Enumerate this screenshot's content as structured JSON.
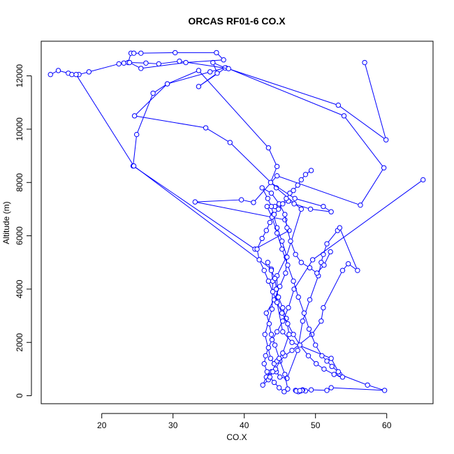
{
  "chart_data": {
    "type": "line",
    "title": "ORCAS RF01-6 CO.X",
    "xlabel": "CO.X",
    "ylabel": "Altitude (m)",
    "xlim": [
      11.5,
      66.5
    ],
    "ylim": [
      -300,
      13300
    ],
    "x_ticks": [
      20,
      30,
      40,
      50,
      60
    ],
    "y_ticks": [
      0,
      2000,
      4000,
      6000,
      8000,
      10000,
      12000
    ],
    "grid": false,
    "legend": "none",
    "line_color": "#0000ff",
    "marker": "open-circle",
    "series": [
      {
        "x": [
          56.9,
          59.9,
          53.2,
          37.4,
          33.6,
          36.2,
          35.6,
          37.3,
          35.2,
          29.2,
          24.6,
          34.6,
          38.0,
          44.5,
          48.0,
          45.9,
          44.6,
          44.6,
          45.4,
          46.7,
          52.2,
          53.4,
          57.3,
          59.7,
          52.2,
          51.6,
          49.4,
          48.6,
          47.2,
          47.6,
          48.2,
          47.9,
          48.1,
          47.3,
          47.8
        ],
        "y": [
          12500,
          9600,
          10900,
          12300,
          11600,
          12100,
          12500,
          12300,
          12150,
          11700,
          10500,
          10050,
          9500,
          7800,
          7000,
          5200,
          4500,
          3500,
          2400,
          2000,
          1400,
          800,
          400,
          200,
          300,
          200,
          220,
          180,
          200,
          150,
          220,
          180,
          200,
          180,
          190
        ],
        "name": ""
      },
      {
        "x": [
          12.8,
          13.9,
          15.3,
          16.8,
          18.2,
          22.4,
          23.1,
          23.7,
          24.1,
          24.5,
          25.5,
          30.3,
          36.1,
          37.1,
          31.8,
          25.5,
          23.9,
          26.2,
          28.0,
          30.9,
          37.8,
          54.0,
          59.6,
          56.3,
          44.6,
          41.3,
          39.6,
          33.1,
          45.7,
          46.3,
          41.5,
          24.4,
          24.9,
          27.2,
          29.2,
          33.6,
          43.4,
          44.6,
          43.7,
          47.1,
          51.1,
          52.2,
          49.3,
          47.0,
          46.2,
          44.3
        ],
        "y": [
          12050,
          12200,
          12100,
          12050,
          12150,
          12450,
          12480,
          12500,
          12850,
          12850,
          12850,
          12870,
          12870,
          12600,
          12500,
          12280,
          12500,
          12480,
          12450,
          12550,
          12270,
          10500,
          8550,
          7150,
          8250,
          7250,
          7350,
          7270,
          6600,
          6200,
          5500,
          8620,
          9800,
          11350,
          11700,
          12200,
          9300,
          8600,
          8000,
          7400,
          7100,
          6900,
          7000,
          7200,
          7300,
          7100
        ],
        "name": ""
      },
      {
        "x": [
          15.8,
          16.4,
          24.5,
          43.8,
          44.0,
          43.9,
          42.9,
          43.7,
          44.2,
          44.5,
          45.0,
          46.0,
          47.5,
          48.2,
          49.2,
          50.4,
          50.8,
          51.1,
          51.6,
          53.1,
          53.4,
          55.9,
          54.6,
          53.8,
          51.1,
          50.8,
          49.5,
          46.7,
          45.7,
          45.0,
          44.4,
          43.8,
          43.1,
          42.6,
          43.4,
          44.0,
          44.6,
          45.4,
          46.3,
          45.9,
          45.4,
          44.8,
          44.5,
          44.3,
          43.8,
          43.3
        ],
        "y": [
          12050,
          12050,
          8620,
          4750,
          4300,
          3250,
          2300,
          1400,
          1200,
          900,
          700,
          650,
          1700,
          2800,
          3600,
          4500,
          5000,
          5300,
          5700,
          6200,
          6300,
          4700,
          4950,
          4700,
          3300,
          2800,
          2300,
          1700,
          1500,
          1300,
          1000,
          900,
          700,
          400,
          600,
          900,
          1300,
          1600,
          2300,
          2900,
          3300,
          3700,
          4000,
          4400,
          4700,
          5000
        ],
        "name": ""
      },
      {
        "x": [
          65.1,
          49.6,
          47.0,
          46.2,
          45.4,
          44.6,
          43.9,
          43.4,
          43.0,
          42.8,
          43.2,
          43.6,
          44.2,
          44.9,
          45.6,
          46.1,
          45.7,
          44.9,
          44.3,
          43.8,
          43.5,
          43.1,
          44.2,
          45.0,
          45.8,
          46.0,
          45.3,
          44.6,
          44.1,
          43.8,
          43.3,
          42.5,
          43.8,
          44.9,
          45.7,
          46.0,
          46.5,
          47.2,
          48.0,
          49.2,
          50.2,
          51.2,
          52.1
        ],
        "y": [
          8100,
          5100,
          4000,
          3300,
          2800,
          2400,
          2100,
          1800,
          1500,
          1200,
          900,
          700,
          500,
          300,
          150,
          250,
          800,
          1400,
          1900,
          2300,
          2700,
          3100,
          3600,
          4100,
          4600,
          5200,
          5800,
          6300,
          6800,
          7100,
          7400,
          7800,
          7600,
          7200,
          6800,
          6300,
          5800,
          5300,
          5000,
          4800,
          4600,
          4900,
          5400
        ],
        "name": ""
      },
      {
        "x": [
          43.2,
          43.9,
          44.6,
          45.3,
          46.1,
          46.9,
          47.6,
          48.4,
          49.1,
          50.0,
          50.9,
          51.6,
          52.3,
          53.2,
          53.8,
          52.6,
          51.2,
          50.1,
          49.0,
          47.8,
          46.9,
          46.1,
          45.3,
          44.6,
          44.0,
          43.4,
          42.8,
          42.1,
          41.8,
          42.5,
          43.1,
          43.6,
          44.2,
          44.8,
          45.4,
          45.9,
          46.4,
          46.9,
          47.5,
          48.0,
          48.6,
          49.4
        ],
        "y": [
          7100,
          6700,
          6100,
          5500,
          4900,
          4300,
          3700,
          3100,
          2500,
          1900,
          1500,
          1300,
          1100,
          900,
          700,
          800,
          1000,
          1200,
          1500,
          1900,
          2300,
          2700,
          3100,
          3500,
          3900,
          4300,
          4700,
          5100,
          5500,
          5900,
          6200,
          6500,
          6800,
          7000,
          7200,
          7400,
          7600,
          7700,
          7900,
          8100,
          8300,
          8450
        ],
        "name": ""
      }
    ]
  }
}
